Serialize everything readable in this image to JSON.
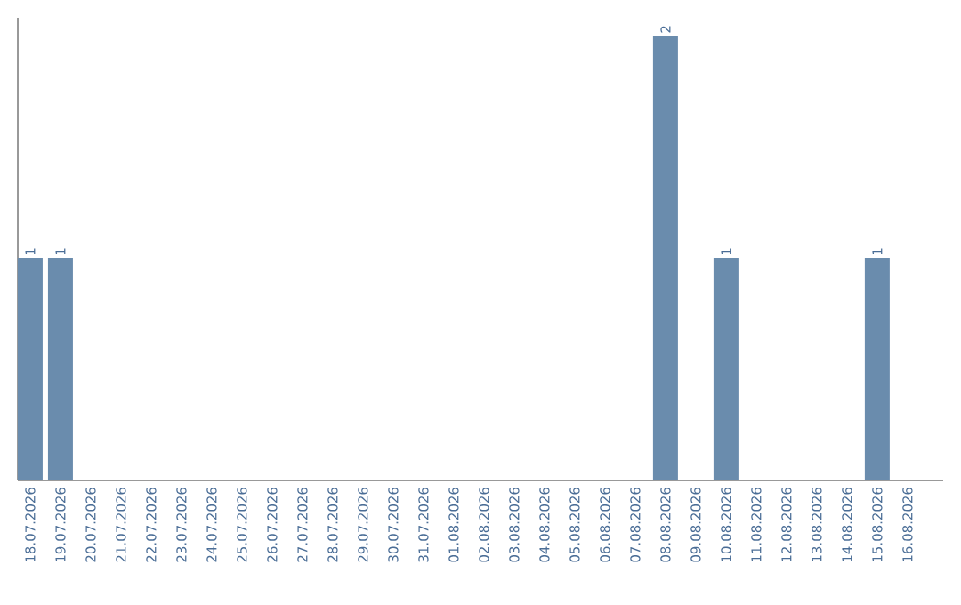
{
  "chart_data": {
    "type": "bar",
    "categories": [
      "18.07.2026",
      "19.07.2026",
      "20.07.2026",
      "21.07.2026",
      "22.07.2026",
      "23.07.2026",
      "24.07.2026",
      "25.07.2026",
      "26.07.2026",
      "27.07.2026",
      "28.07.2026",
      "29.07.2026",
      "30.07.2026",
      "31.07.2026",
      "01.08.2026",
      "02.08.2026",
      "03.08.2026",
      "04.08.2026",
      "05.08.2026",
      "06.08.2026",
      "07.08.2026",
      "08.08.2026",
      "09.08.2026",
      "10.08.2026",
      "11.08.2026",
      "12.08.2026",
      "13.08.2026",
      "14.08.2026",
      "15.08.2026",
      "16.08.2026"
    ],
    "values": [
      1,
      1,
      0,
      0,
      0,
      0,
      0,
      0,
      0,
      0,
      0,
      0,
      0,
      0,
      0,
      0,
      0,
      0,
      0,
      0,
      0,
      2,
      0,
      1,
      0,
      0,
      0,
      0,
      1,
      0
    ],
    "value_labels": [
      "1",
      "1",
      null,
      null,
      null,
      null,
      null,
      null,
      null,
      null,
      null,
      null,
      null,
      null,
      null,
      null,
      null,
      null,
      null,
      null,
      null,
      "2",
      null,
      "1",
      null,
      null,
      null,
      null,
      "1",
      null
    ],
    "color": "#6a8cad",
    "ylim": [
      0,
      2.08
    ],
    "tick_labels": "x"
  }
}
